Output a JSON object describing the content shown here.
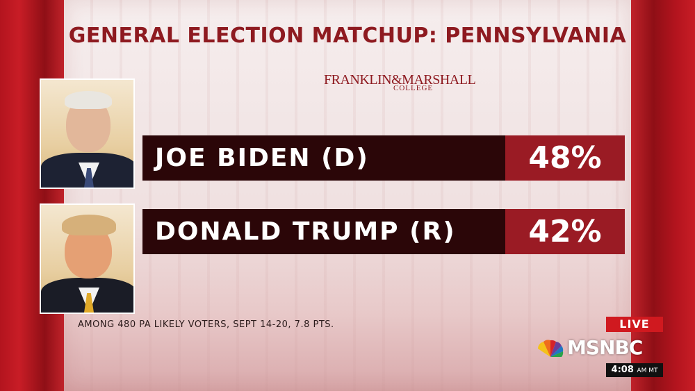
{
  "title": "GENERAL ELECTION MATCHUP: PENNSYLVANIA",
  "source_logo": {
    "main": "FRANKLIN&MARSHALL",
    "sub": "COLLEGE"
  },
  "candidates": [
    {
      "name": "JOE BIDEN (D)",
      "percent": "48%",
      "photo_icon": "joe-biden-portrait"
    },
    {
      "name": "DONALD TRUMP (R)",
      "percent": "42%",
      "photo_icon": "donald-trump-portrait"
    }
  ],
  "footnote": "AMONG 480 PA LIKELY VOTERS, SEPT 14-20, 7.8 PTS.",
  "broadcast": {
    "live_label": "LIVE",
    "network": "MSNBC",
    "time": "4:08",
    "time_suffix": "AM MT"
  },
  "colors": {
    "accent_red": "#9a1b24",
    "bar_dark": "#2b0608",
    "title_red": "#8e1a20",
    "live_red": "#d0191f"
  }
}
